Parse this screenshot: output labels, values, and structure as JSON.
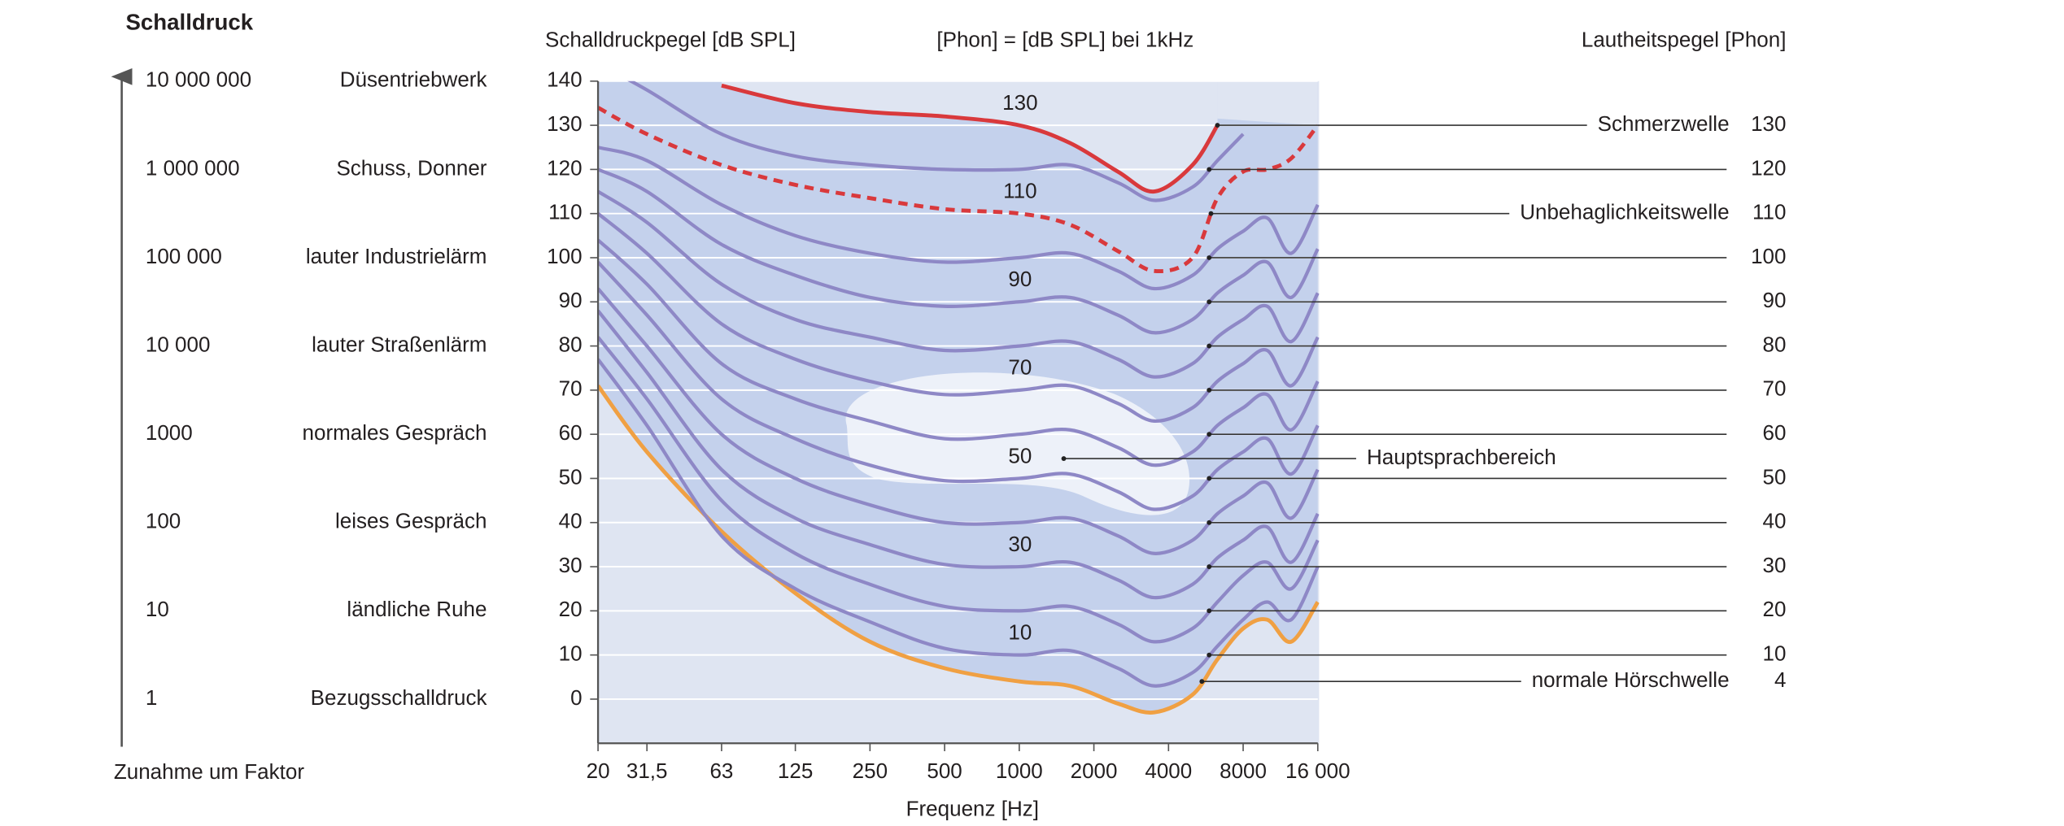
{
  "chart_data": {
    "type": "line",
    "y_label": "Schalldruckpegel [dB SPL]",
    "subtitle": "[Phon] = [dB SPL] bei 1kHz",
    "y2_label": "Lautheitspegel [Phon]",
    "x_label": "Frequenz [Hz]",
    "speech_area_label": "Hauptsprachbereich",
    "left_panel": {
      "title": "Schalldruck",
      "footer": "Zunahme um Faktor",
      "rows": [
        {
          "factor": "10 000 000",
          "source": "Düsentriebwerk"
        },
        {
          "factor": "1 000 000",
          "source": "Schuss, Donner"
        },
        {
          "factor": "100 000",
          "source": "lauter Industrielärm"
        },
        {
          "factor": "10 000",
          "source": "lauter Straßenlärm"
        },
        {
          "factor": "1000",
          "source": "normales Gespräch"
        },
        {
          "factor": "100",
          "source": "leises Gespräch"
        },
        {
          "factor": "10",
          "source": "ländliche Ruhe"
        },
        {
          "factor": "1",
          "source": "Bezugsschalldruck"
        }
      ]
    },
    "x": [
      20,
      31.5,
      63,
      125,
      250,
      500,
      1000,
      1600,
      2500,
      3500,
      5000,
      6300,
      8000,
      10000,
      12500,
      16000
    ],
    "xlim": [
      20,
      16000
    ],
    "log_x": true,
    "xticks": [
      20,
      {
        "value": 31.5,
        "label": "31,5"
      },
      63,
      125,
      250,
      500,
      1000,
      2000,
      4000,
      8000,
      {
        "value": 16000,
        "label": "16 000"
      }
    ],
    "ylim": [
      -10,
      140
    ],
    "yticks": [
      0,
      10,
      20,
      30,
      40,
      50,
      60,
      70,
      80,
      90,
      100,
      110,
      120,
      130,
      140
    ],
    "grid": true,
    "series": [
      {
        "name": "4",
        "annotation": "normale Hörschwelle",
        "color": "#f0a043",
        "values": [
          71,
          56,
          38,
          24,
          13,
          7,
          4,
          3,
          -1,
          -3,
          1,
          9,
          16,
          18,
          13,
          22
        ]
      },
      {
        "name": "10",
        "color": "#8e88c6",
        "values": [
          77,
          62,
          37,
          25,
          17.5,
          11.5,
          10,
          11,
          7,
          3,
          6,
          12,
          18,
          22,
          18,
          30
        ]
      },
      {
        "name": "20",
        "color": "#8e88c6",
        "values": [
          82,
          68,
          45,
          33,
          26,
          21,
          20,
          21,
          17,
          13,
          16,
          22,
          28,
          31,
          25,
          36
        ]
      },
      {
        "name": "30",
        "color": "#8e88c6",
        "values": [
          88,
          74,
          52,
          41,
          35,
          30.5,
          30,
          31,
          27,
          23,
          26,
          32,
          36,
          39,
          31,
          42
        ]
      },
      {
        "name": "40",
        "color": "#8e88c6",
        "values": [
          93,
          80,
          60,
          50,
          44,
          40,
          40,
          41,
          37,
          33,
          36,
          42,
          46,
          49,
          41,
          52
        ]
      },
      {
        "name": "50",
        "color": "#8e88c6",
        "values": [
          99,
          87,
          68,
          59,
          53,
          49.5,
          50,
          51,
          47,
          43,
          46,
          52,
          56,
          59,
          51,
          62
        ]
      },
      {
        "name": "60",
        "color": "#8e88c6",
        "values": [
          104,
          94,
          76,
          68,
          63,
          59,
          60,
          61,
          57,
          53,
          56,
          62,
          66,
          69,
          61,
          72
        ]
      },
      {
        "name": "70",
        "color": "#8e88c6",
        "values": [
          110,
          101,
          85,
          77,
          72,
          69,
          70,
          71,
          67,
          63,
          66,
          72,
          76,
          79,
          71,
          82
        ]
      },
      {
        "name": "80",
        "color": "#8e88c6",
        "values": [
          115,
          108,
          94,
          86,
          82,
          79,
          80,
          81,
          77,
          73,
          76,
          82,
          86,
          89,
          81,
          92
        ]
      },
      {
        "name": "90",
        "color": "#8e88c6",
        "values": [
          120,
          115,
          103,
          96,
          91,
          89,
          90,
          91,
          87,
          83,
          86,
          92,
          96,
          99,
          91,
          102
        ]
      },
      {
        "name": "100",
        "color": "#8e88c6",
        "values": [
          125,
          122,
          112,
          105,
          101,
          99,
          100,
          101,
          97,
          93,
          96,
          102,
          106,
          109,
          101,
          112
        ]
      },
      {
        "name": "110",
        "annotation": "Unbehaglichkeitswelle",
        "color": "#d9393c",
        "dashed": true,
        "values": [
          134,
          128,
          121,
          116.5,
          113.5,
          111,
          110,
          107.5,
          101.5,
          97,
          100,
          113.5,
          119.5,
          120,
          122.5,
          130
        ]
      },
      {
        "name": "120",
        "color": "#8e88c6",
        "values": [
          144,
          138,
          128,
          123,
          121,
          120,
          120,
          121,
          117,
          113,
          116,
          122,
          128,
          null,
          null,
          null
        ]
      },
      {
        "name": "130",
        "annotation": "Schmerzwelle",
        "color": "#d9393c",
        "values": [
          null,
          null,
          139,
          135,
          133,
          132,
          130,
          126,
          119.5,
          115,
          121,
          130,
          null,
          null,
          null,
          null
        ]
      }
    ]
  }
}
